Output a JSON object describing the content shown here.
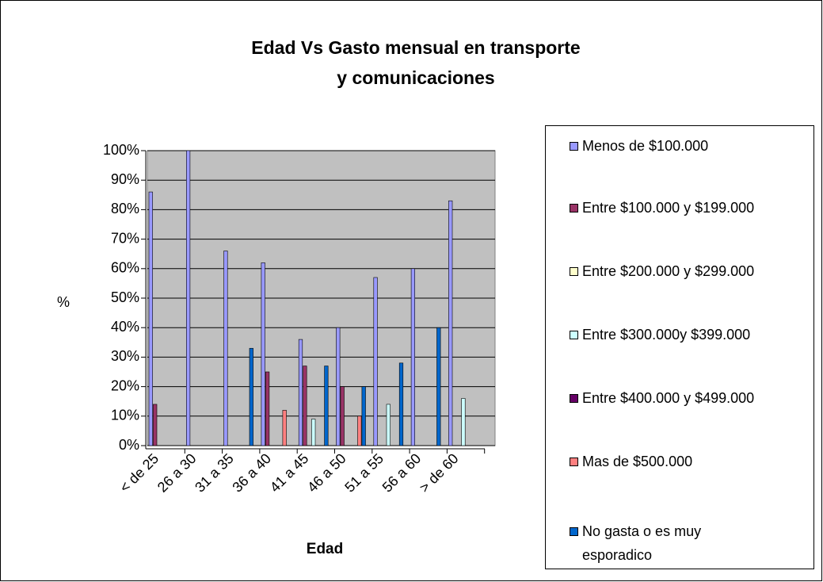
{
  "chart_data": {
    "type": "bar",
    "title": "Edad Vs Gasto mensual en transporte y comunicaciones",
    "x_label": "Edad",
    "y_label": "%",
    "categories": [
      "< de 25",
      "26 a 30",
      "31 a 35",
      "36 a 40",
      "41 a 45",
      "46 a 50",
      "51 a 55",
      "56 a 60",
      "> de 60"
    ],
    "series": [
      {
        "name": "Menos de $100.000",
        "color": "#9999ff",
        "values": [
          86,
          100,
          66,
          62,
          36,
          40,
          57,
          60,
          83
        ]
      },
      {
        "name": "Entre $100.000 y $199.000",
        "color": "#993366",
        "values": [
          14,
          0,
          0,
          25,
          27,
          20,
          0,
          0,
          0
        ]
      },
      {
        "name": "Entre $200.000 y $299.000",
        "color": "#ffffcc",
        "values": [
          0,
          0,
          0,
          0,
          0,
          0,
          0,
          0,
          0
        ]
      },
      {
        "name": "Entre $300.000y $399.000",
        "color": "#ccffff",
        "values": [
          0,
          0,
          0,
          0,
          9,
          0,
          14,
          0,
          16
        ]
      },
      {
        "name": "Entre $400.000 y $499.000",
        "color": "#660066",
        "values": [
          0,
          0,
          0,
          0,
          0,
          0,
          0,
          0,
          0
        ]
      },
      {
        "name": "Mas de $500.000",
        "color": "#ff8080",
        "values": [
          0,
          0,
          0,
          12,
          0,
          10,
          0,
          0,
          0
        ]
      },
      {
        "name": "No gasta o es muy esporadico",
        "color": "#0066cc",
        "values": [
          0,
          0,
          33,
          0,
          27,
          20,
          28,
          40,
          0
        ]
      }
    ],
    "ylim": [
      0,
      100
    ],
    "yticks": [
      {
        "value": 0,
        "label": "0%"
      },
      {
        "value": 10,
        "label": "10%"
      },
      {
        "value": 20,
        "label": "20%"
      },
      {
        "value": 30,
        "label": "30%"
      },
      {
        "value": 40,
        "label": "40%"
      },
      {
        "value": 50,
        "label": "50%"
      },
      {
        "value": 60,
        "label": "60%"
      },
      {
        "value": 70,
        "label": "70%"
      },
      {
        "value": 80,
        "label": "80%"
      },
      {
        "value": 90,
        "label": "90%"
      },
      {
        "value": 100,
        "label": "100%"
      }
    ],
    "grid": true,
    "legend": "right"
  }
}
